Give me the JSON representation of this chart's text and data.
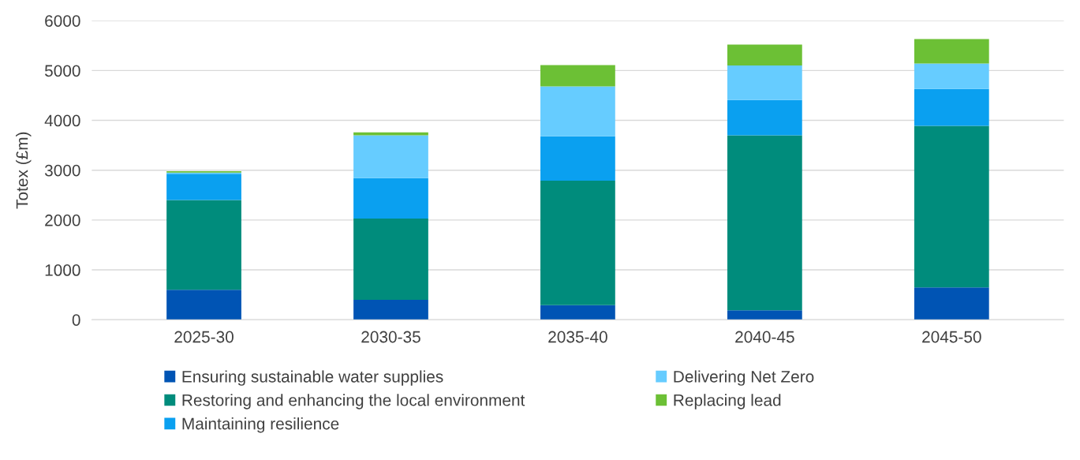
{
  "chart_data": {
    "type": "bar",
    "stacked": true,
    "ylabel": "Totex (£m)",
    "categories": [
      "2025-30",
      "2030-35",
      "2035-40",
      "2040-45",
      "2045-50"
    ],
    "series": [
      {
        "name": "Ensuring sustainable water supplies",
        "color": "#0054b4",
        "values": [
          600,
          400,
          290,
          190,
          650
        ]
      },
      {
        "name": "Restoring and enhancing the local environment",
        "color": "#008c7c",
        "values": [
          1800,
          1630,
          2500,
          3510,
          3240
        ]
      },
      {
        "name": "Maintaining resilience",
        "color": "#0aa0f0",
        "values": [
          530,
          810,
          890,
          710,
          740
        ]
      },
      {
        "name": "Delivering Net Zero",
        "color": "#66ccff",
        "values": [
          20,
          860,
          1000,
          690,
          510
        ]
      },
      {
        "name": "Replacing lead",
        "color": "#6cc035",
        "values": [
          30,
          60,
          430,
          420,
          490
        ]
      }
    ],
    "ylim": [
      0,
      6000
    ],
    "yticks": [
      0,
      1000,
      2000,
      3000,
      4000,
      5000,
      6000
    ],
    "grid": "y",
    "legend": "bottom"
  }
}
